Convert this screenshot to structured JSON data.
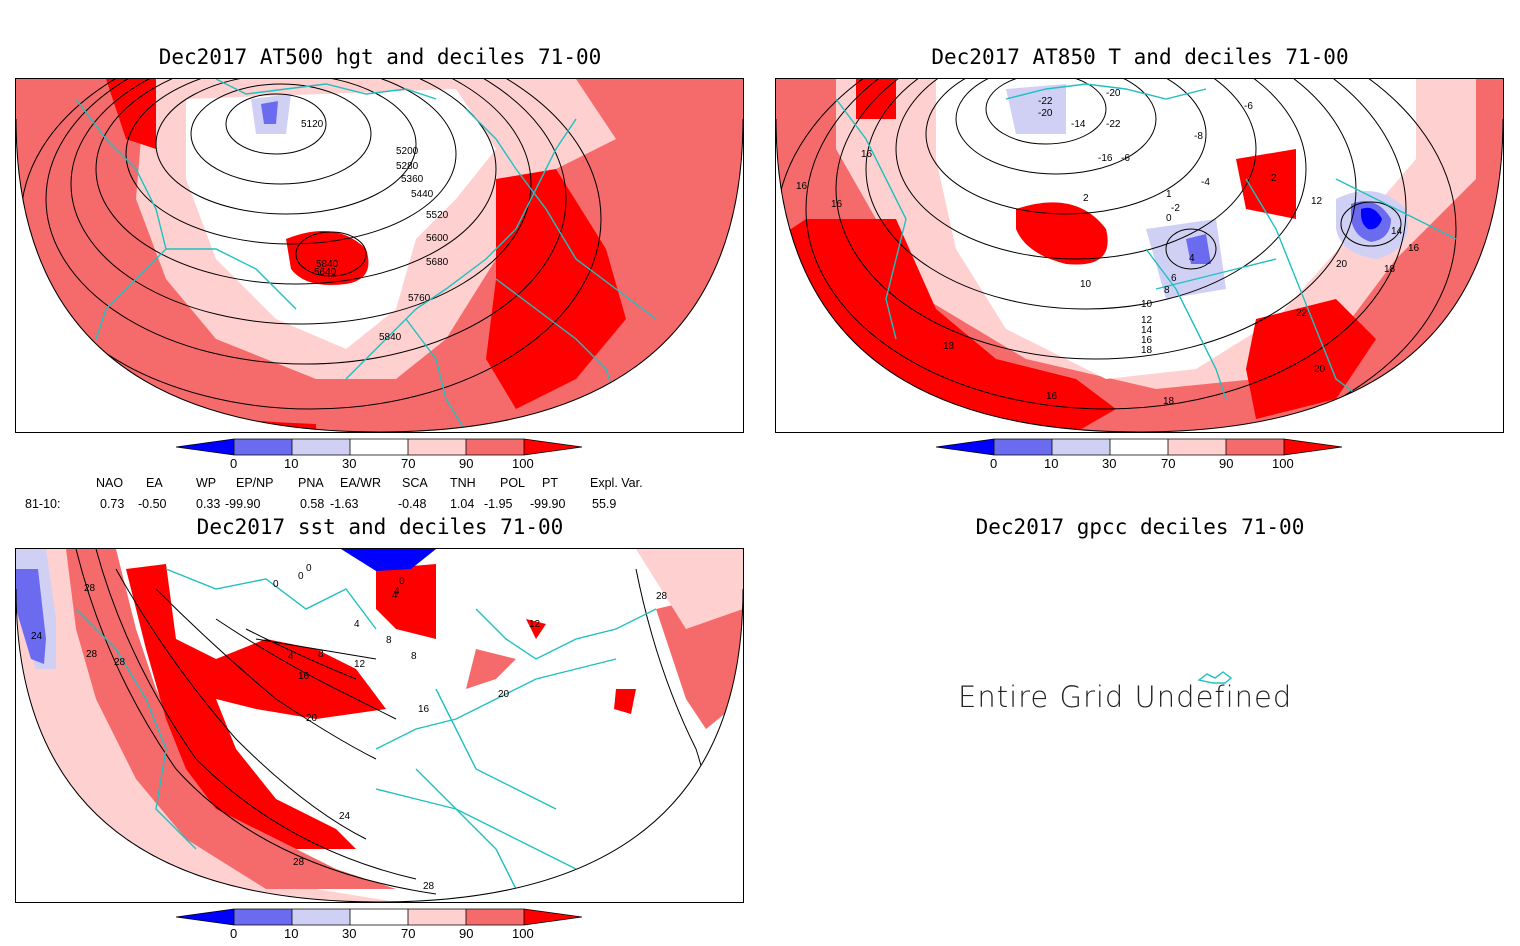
{
  "panels": {
    "hgt": {
      "title": "Dec2017 AT500 hgt and deciles 71-00",
      "contour_labels": [
        "5120",
        "5200",
        "5280",
        "5360",
        "5440",
        "5520",
        "5600",
        "5680",
        "5760",
        "5840",
        "5840",
        "5640"
      ]
    },
    "t850": {
      "title": "Dec2017 AT850 T and deciles 71-00",
      "contour_labels": [
        "-22",
        "-20",
        "-20",
        "-14",
        "-22",
        "-16",
        "-6",
        "-8",
        "-6",
        "-4",
        "2",
        "2",
        "0",
        "-2",
        "1",
        "16",
        "16",
        "16",
        "12",
        "14",
        "16",
        "18",
        "20",
        "22",
        "20",
        "4",
        "6",
        "8",
        "10",
        "10",
        "12",
        "14",
        "16",
        "18",
        "18",
        "16",
        "18"
      ]
    },
    "sst": {
      "title": "Dec2017 sst and deciles 71-00",
      "contour_labels": [
        "28",
        "24",
        "28",
        "28",
        "0",
        "0",
        "0",
        "4",
        "4",
        "4",
        "8",
        "12",
        "16",
        "20",
        "24",
        "28",
        "28",
        "28",
        "16",
        "8",
        "12",
        "20",
        "8",
        "4",
        "0"
      ]
    },
    "gpcc": {
      "title": "Dec2017 gpcc deciles 71-00",
      "message": "Entire Grid Undefined"
    }
  },
  "colorbar": {
    "ticks": [
      "0",
      "10",
      "30",
      "70",
      "90",
      "100"
    ],
    "colors": [
      "#0000ff",
      "#6b6bf0",
      "#d0d0f5",
      "#ffffff",
      "#ffd0d0",
      "#f56b6b",
      "#ff0000"
    ]
  },
  "indices": {
    "headers": [
      "NAO",
      "EA",
      "WP",
      "EP/NP",
      "PNA",
      "EA/WR",
      "SCA",
      "TNH",
      "POL",
      "PT",
      "Expl. Var."
    ],
    "row_label": "81-10:",
    "values": [
      "0.73",
      "-0.50",
      "0.33",
      "-99.90",
      "0.58",
      "-1.63",
      "-0.48",
      "1.04",
      "-1.95",
      "-99.90",
      "55.9"
    ]
  },
  "map_colors": {
    "dark_red": "#ff0000",
    "mid_red": "#f56b6b",
    "light_red": "#ffd0d0",
    "light_blue": "#d0d0f5",
    "mid_blue": "#6b6bf0",
    "blue": "#0000ff",
    "coast": "#20c0c0"
  }
}
